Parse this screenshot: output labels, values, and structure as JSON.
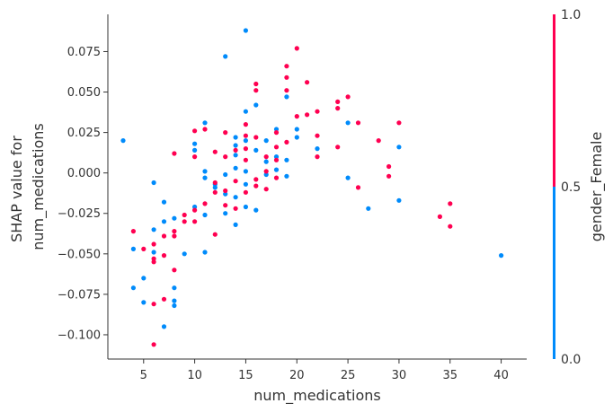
{
  "chart_data": {
    "type": "scatter",
    "title": "",
    "xlabel": "num_medications",
    "ylabel_lines": [
      "SHAP value for",
      "num_medications"
    ],
    "xlim": [
      1.5,
      42.5
    ],
    "ylim": [
      -0.115,
      0.098
    ],
    "xticks": [
      5,
      10,
      15,
      20,
      25,
      30,
      35,
      40
    ],
    "yticks": [
      -0.1,
      -0.075,
      -0.05,
      -0.025,
      0.0,
      0.025,
      0.05,
      0.075
    ],
    "ytick_labels": [
      "−0.100",
      "−0.075",
      "−0.050",
      "−0.025",
      "0.000",
      "0.025",
      "0.050",
      "0.075"
    ],
    "grid": false,
    "colorbar": {
      "label": "gender_Female",
      "ticks": [
        0.0,
        0.5,
        1.0
      ],
      "tick_labels": [
        "0.0",
        "0.5",
        "1.0"
      ],
      "low_color": "#008bfb",
      "high_color": "#ff0051"
    },
    "series": [
      {
        "value": 0,
        "color": "#008bfb",
        "points": [
          [
            3,
            0.02
          ],
          [
            4,
            -0.047
          ],
          [
            4,
            -0.071
          ],
          [
            5,
            -0.08
          ],
          [
            5,
            -0.065
          ],
          [
            6,
            -0.035
          ],
          [
            6,
            -0.049
          ],
          [
            6,
            -0.006
          ],
          [
            7,
            -0.018
          ],
          [
            7,
            -0.03
          ],
          [
            7,
            -0.095
          ],
          [
            8,
            -0.028
          ],
          [
            8,
            -0.071
          ],
          [
            8,
            -0.079
          ],
          [
            8,
            -0.082
          ],
          [
            9,
            -0.05
          ],
          [
            10,
            0.018
          ],
          [
            10,
            0.014
          ],
          [
            10,
            -0.021
          ],
          [
            11,
            0.031
          ],
          [
            11,
            0.001
          ],
          [
            11,
            -0.003
          ],
          [
            11,
            -0.026
          ],
          [
            11,
            -0.049
          ],
          [
            12,
            -0.009
          ],
          [
            12,
            -0.007
          ],
          [
            13,
            0.072
          ],
          [
            13,
            -0.001
          ],
          [
            13,
            -0.013
          ],
          [
            13,
            -0.025
          ],
          [
            14,
            0.003
          ],
          [
            14,
            0.011
          ],
          [
            14,
            0.017
          ],
          [
            14,
            0.022
          ],
          [
            14,
            -0.015
          ],
          [
            14,
            -0.032
          ],
          [
            15,
            0.088
          ],
          [
            15,
            0.038
          ],
          [
            15,
            0.02
          ],
          [
            15,
            0.001
          ],
          [
            15,
            -0.007
          ],
          [
            15,
            -0.021
          ],
          [
            16,
            0.042
          ],
          [
            16,
            0.014
          ],
          [
            16,
            -0.023
          ],
          [
            17,
            0.02
          ],
          [
            17,
            0.007
          ],
          [
            17,
            -0.001
          ],
          [
            18,
            0.027
          ],
          [
            18,
            0.01
          ],
          [
            18,
            0.002
          ],
          [
            19,
            0.047
          ],
          [
            19,
            0.008
          ],
          [
            19,
            -0.002
          ],
          [
            20,
            0.027
          ],
          [
            20,
            0.022
          ],
          [
            22,
            0.015
          ],
          [
            25,
            0.031
          ],
          [
            25,
            -0.003
          ],
          [
            27,
            -0.022
          ],
          [
            30,
            0.016
          ],
          [
            30,
            -0.017
          ],
          [
            40,
            -0.051
          ]
        ]
      },
      {
        "value": 1,
        "color": "#ff0051",
        "points": [
          [
            4,
            -0.036
          ],
          [
            5,
            -0.047
          ],
          [
            6,
            -0.044
          ],
          [
            6,
            -0.053
          ],
          [
            6,
            -0.055
          ],
          [
            6,
            -0.081
          ],
          [
            6,
            -0.106
          ],
          [
            7,
            -0.039
          ],
          [
            7,
            -0.051
          ],
          [
            7,
            -0.078
          ],
          [
            8,
            0.012
          ],
          [
            8,
            -0.036
          ],
          [
            8,
            -0.039
          ],
          [
            8,
            -0.06
          ],
          [
            9,
            -0.026
          ],
          [
            9,
            -0.03
          ],
          [
            10,
            0.026
          ],
          [
            10,
            0.01
          ],
          [
            10,
            -0.023
          ],
          [
            10,
            -0.03
          ],
          [
            11,
            0.027
          ],
          [
            11,
            -0.019
          ],
          [
            12,
            0.013
          ],
          [
            12,
            -0.006
          ],
          [
            12,
            -0.012
          ],
          [
            12,
            -0.038
          ],
          [
            13,
            0.025
          ],
          [
            13,
            0.01
          ],
          [
            13,
            -0.011
          ],
          [
            13,
            -0.02
          ],
          [
            14,
            0.014
          ],
          [
            14,
            -0.005
          ],
          [
            14,
            -0.022
          ],
          [
            15,
            0.03
          ],
          [
            15,
            0.023
          ],
          [
            15,
            0.015
          ],
          [
            15,
            0.008
          ],
          [
            15,
            -0.012
          ],
          [
            16,
            0.055
          ],
          [
            16,
            0.051
          ],
          [
            16,
            0.022
          ],
          [
            16,
            -0.004
          ],
          [
            16,
            -0.008
          ],
          [
            17,
            0.01
          ],
          [
            17,
            0.001
          ],
          [
            17,
            -0.01
          ],
          [
            18,
            0.025
          ],
          [
            18,
            0.016
          ],
          [
            18,
            0.008
          ],
          [
            18,
            -0.003
          ],
          [
            19,
            0.066
          ],
          [
            19,
            0.059
          ],
          [
            19,
            0.051
          ],
          [
            19,
            0.019
          ],
          [
            20,
            0.077
          ],
          [
            20,
            0.035
          ],
          [
            21,
            0.056
          ],
          [
            21,
            0.036
          ],
          [
            22,
            0.038
          ],
          [
            22,
            0.023
          ],
          [
            22,
            0.01
          ],
          [
            24,
            0.044
          ],
          [
            24,
            0.04
          ],
          [
            24,
            0.016
          ],
          [
            25,
            0.047
          ],
          [
            26,
            0.031
          ],
          [
            26,
            -0.009
          ],
          [
            28,
            0.02
          ],
          [
            29,
            0.004
          ],
          [
            29,
            -0.002
          ],
          [
            30,
            0.031
          ],
          [
            34,
            -0.027
          ],
          [
            35,
            -0.019
          ],
          [
            35,
            -0.033
          ]
        ]
      }
    ]
  }
}
